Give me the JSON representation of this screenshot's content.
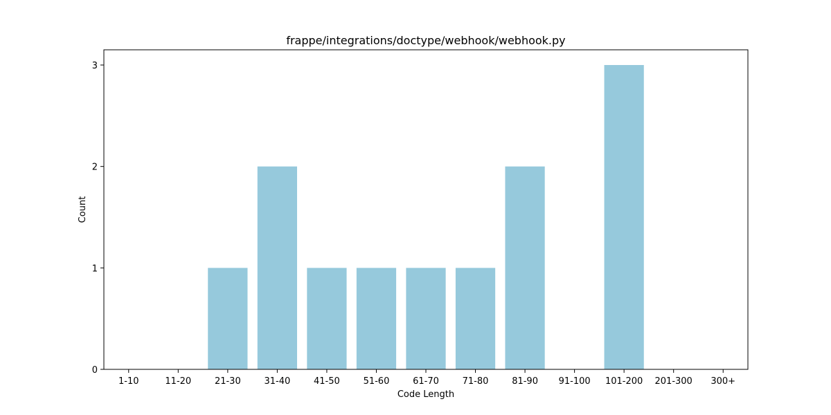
{
  "chart_data": {
    "type": "bar",
    "title": "frappe/integrations/doctype/webhook/webhook.py",
    "xlabel": "Code Length",
    "ylabel": "Count",
    "categories": [
      "1-10",
      "11-20",
      "21-30",
      "31-40",
      "41-50",
      "51-60",
      "61-70",
      "71-80",
      "81-90",
      "91-100",
      "101-200",
      "201-300",
      "300+"
    ],
    "values": [
      0,
      0,
      1,
      2,
      1,
      1,
      1,
      1,
      2,
      0,
      3,
      0,
      0
    ],
    "ylim": [
      0,
      3.15
    ],
    "yticks": [
      0,
      1,
      2,
      3
    ],
    "bar_color": "#96c9dc",
    "grid": false,
    "legend": "none"
  }
}
